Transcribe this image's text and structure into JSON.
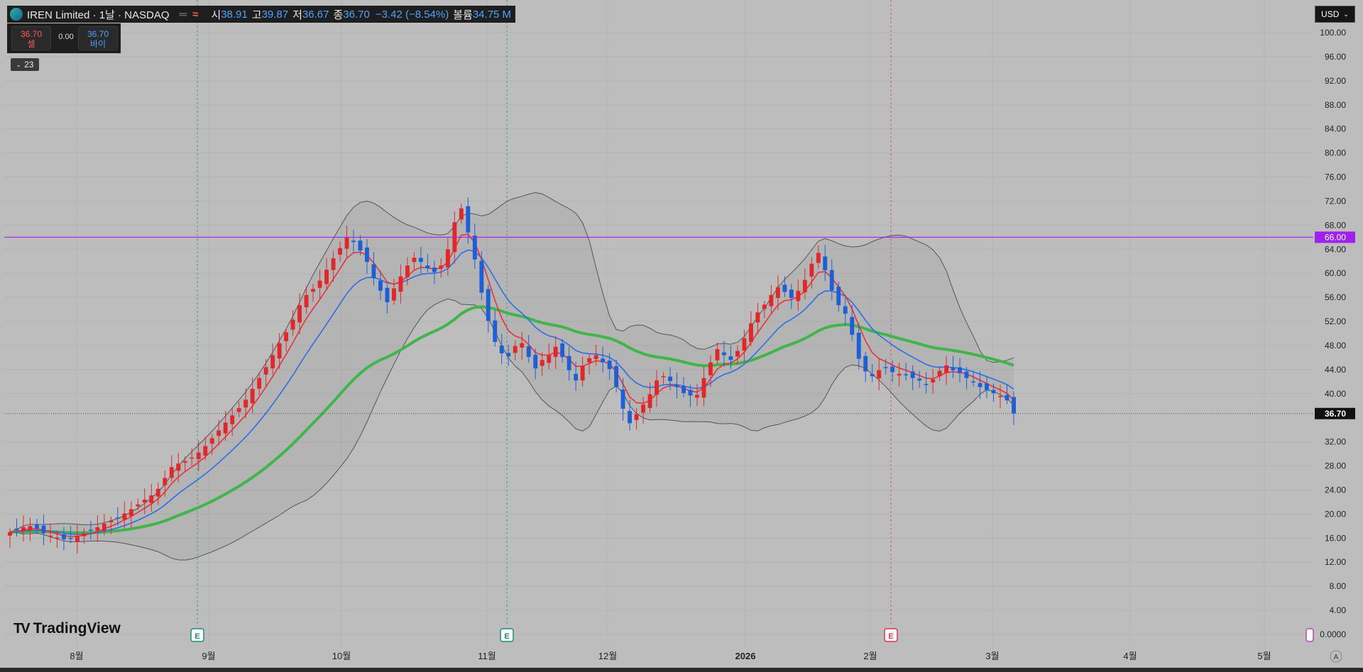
{
  "header": {
    "title": "IREN Limited · 1날 · NASDAQ",
    "approx_icon": "≈",
    "dash_icon": "═",
    "open_label": "시",
    "open": "38.91",
    "high_label": "고",
    "high": "39.87",
    "low_label": "저",
    "low": "36.67",
    "close_label": "종",
    "close": "36.70",
    "change": "−3.42 (−8.54%)",
    "volume_label": "볼륨",
    "volume": "34.75 M"
  },
  "trade": {
    "sell_price": "36.70",
    "sell_label": "셀",
    "spread": "0.00",
    "buy_price": "36.70",
    "buy_label": "바이"
  },
  "indicator_toggle": "23",
  "currency": "USD",
  "branding": {
    "name": "TradingView",
    "mark": "TV"
  },
  "auto_label": "A",
  "chart_data": {
    "type": "candlestick",
    "symbol": "IREN",
    "price_axis": {
      "ticks": [
        "100.00",
        "96.00",
        "92.00",
        "88.00",
        "84.00",
        "80.00",
        "76.00",
        "72.00",
        "68.00",
        "64.00",
        "60.00",
        "56.00",
        "52.00",
        "48.00",
        "44.00",
        "40.00",
        "32.00",
        "28.00",
        "24.00",
        "20.00",
        "16.00",
        "12.00",
        "8.00",
        "4.00",
        "0.0000"
      ],
      "min": 0,
      "max": 100
    },
    "time_axis": [
      "8월",
      "9월",
      "10월",
      "11월",
      "12월",
      "2026",
      "2월",
      "3월",
      "4월",
      "5월"
    ],
    "horizontal_line": {
      "value": 66.0,
      "label": "66.00",
      "color": "#a020f0"
    },
    "last_price": {
      "value": 36.7,
      "label": "36.70"
    },
    "earnings_markers": [
      {
        "label": "E",
        "date": "8월 말",
        "color": "#1a8c7c"
      },
      {
        "label": "E",
        "date": "11월 초",
        "color": "#1a8c7c"
      },
      {
        "label": "E",
        "date": "2월 초",
        "color": "#e0304a"
      }
    ],
    "colors": {
      "up": "#e0282a",
      "down": "#1f5fd6",
      "ma_fast": "#e8323a",
      "ma_mid": "#2a6fe8",
      "ma_slow": "#3fb54a",
      "band": "#555555"
    },
    "closes": [
      17,
      17.3,
      17.8,
      18,
      17.6,
      16.8,
      16.4,
      16.1,
      15.8,
      16,
      16.4,
      16.8,
      17.3,
      17.8,
      18.4,
      18.9,
      19.4,
      20.1,
      20.8,
      21.6,
      22.4,
      23.1,
      24.2,
      26,
      27.8,
      28.4,
      28.8,
      29.4,
      30.2,
      31.3,
      32.6,
      33.9,
      35.2,
      36.4,
      37.6,
      39,
      40.8,
      42.6,
      44.4,
      46.4,
      48.4,
      50.2,
      52.3,
      54.7,
      56.4,
      57.4,
      58.8,
      60.6,
      62.5,
      64.2,
      66,
      65.2,
      63.8,
      61.9,
      59.2,
      57.1,
      55.2,
      57.5,
      59.5,
      61.3,
      62.6,
      61.9,
      60.8,
      60.2,
      61.3,
      64,
      68.5,
      70.8,
      66.8,
      62.3,
      56.8,
      52.1,
      48.6,
      46.7,
      46.2,
      47.9,
      48.4,
      46.1,
      44.2,
      45.6,
      46.4,
      47.8,
      46.1,
      43.9,
      42.2,
      44.6,
      45.9,
      46.4,
      45.2,
      44.1,
      41.1,
      37.5,
      35.1,
      36.6,
      38.2,
      39.9,
      42.2,
      42.9,
      42.1,
      41.1,
      40.1,
      39.7,
      39.8,
      42.6,
      45.2,
      47.4,
      46.4,
      45.6,
      47.1,
      49.2,
      51.7,
      53.5,
      54.8,
      56.4,
      57.7,
      56.9,
      55.9,
      57.1,
      58.9,
      61.6,
      63.4,
      60.5,
      57.2,
      54.7,
      53.3,
      49.8,
      45.8,
      43.7,
      42.9,
      43.9,
      44.3,
      43.6,
      43.3,
      43.1,
      42.6,
      42.2,
      41.6,
      42.4,
      43.8,
      44.7,
      43.9,
      43.4,
      42.6,
      41.9,
      41.1,
      40.6,
      40.1,
      39.6,
      38.9,
      36.7
    ]
  }
}
